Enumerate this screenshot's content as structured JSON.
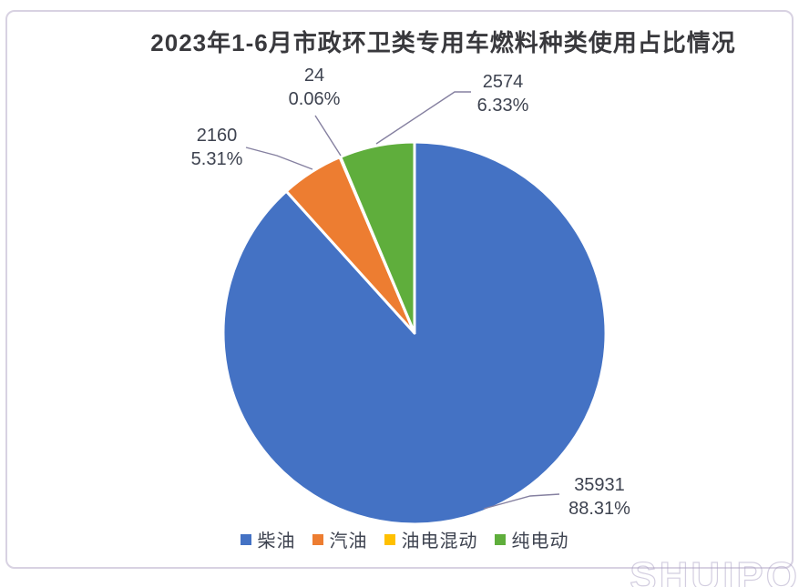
{
  "chart_data": {
    "type": "pie",
    "title": "2023年1-6月市政环卫类专用车燃料种类使用占比情况",
    "categories": [
      "柴油",
      "汽油",
      "油电混动",
      "纯电动"
    ],
    "values": [
      35931,
      2160,
      24,
      2574
    ],
    "percent_labels": [
      "88.31%",
      "5.31%",
      "0.06%",
      "6.33%"
    ],
    "colors": [
      "#4472C4",
      "#ED7D31",
      "#FFC000",
      "#5FAE3C"
    ],
    "start_angle_deg": 0,
    "direction": "clockwise",
    "legend_position": "bottom",
    "slice_border_color": "#ffffff",
    "leader_line_color": "#8580A0"
  },
  "watermark": "SHUIPO"
}
